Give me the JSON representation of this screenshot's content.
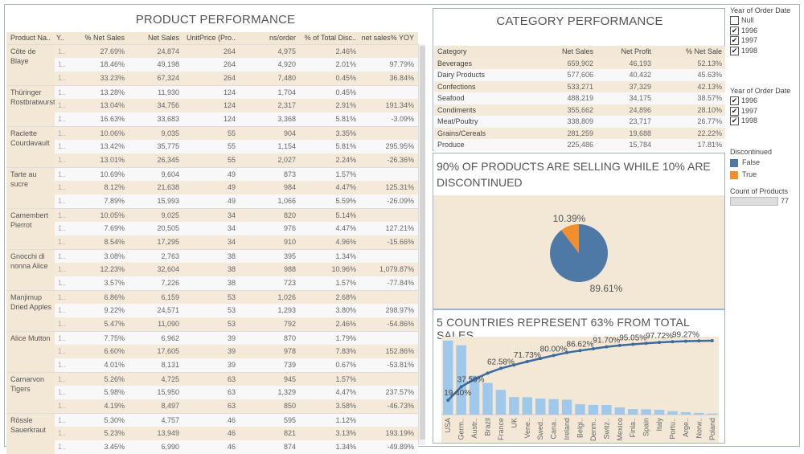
{
  "product_performance": {
    "title": "PRODUCT PERFORMANCE",
    "headers": [
      "Product Na..",
      "Y..",
      "% Net Sales",
      "Net Sales",
      "UnitPrice (Pro..",
      "ns/order",
      "% of Total Disc..",
      "net sales% YOY"
    ],
    "year_cell": "1..",
    "products": [
      {
        "name": "Côte de Blaye",
        "rows": [
          [
            "27.69%",
            "24,874",
            "264",
            "4,975",
            "2.46%",
            ""
          ],
          [
            "18.46%",
            "49,198",
            "264",
            "4,920",
            "2.01%",
            "97.79%"
          ],
          [
            "33.23%",
            "67,324",
            "264",
            "7,480",
            "0.45%",
            "36.84%"
          ]
        ]
      },
      {
        "name": "Thüringer Rostbratwurst",
        "rows": [
          [
            "13.28%",
            "11,930",
            "124",
            "1,704",
            "0.45%",
            ""
          ],
          [
            "13.04%",
            "34,756",
            "124",
            "2,317",
            "2.91%",
            "191.34%"
          ],
          [
            "16.63%",
            "33,683",
            "124",
            "3,368",
            "5.81%",
            "-3.09%"
          ]
        ]
      },
      {
        "name": "Raclette Courdavault",
        "rows": [
          [
            "10.06%",
            "9,035",
            "55",
            "904",
            "3.35%",
            ""
          ],
          [
            "13.42%",
            "35,775",
            "55",
            "1,154",
            "5.81%",
            "295.95%"
          ],
          [
            "13.01%",
            "26,345",
            "55",
            "2,027",
            "2.24%",
            "-26.36%"
          ]
        ]
      },
      {
        "name": "Tarte au sucre",
        "rows": [
          [
            "10.69%",
            "9,604",
            "49",
            "873",
            "1.57%",
            ""
          ],
          [
            "8.12%",
            "21,638",
            "49",
            "984",
            "4.47%",
            "125.31%"
          ],
          [
            "7.89%",
            "15,993",
            "49",
            "1,066",
            "5.59%",
            "-26.09%"
          ]
        ]
      },
      {
        "name": "Camembert Pierrot",
        "rows": [
          [
            "10.05%",
            "9,025",
            "34",
            "820",
            "5.14%",
            ""
          ],
          [
            "7.69%",
            "20,505",
            "34",
            "976",
            "4.47%",
            "127.21%"
          ],
          [
            "8.54%",
            "17,295",
            "34",
            "910",
            "4.96%",
            "-15.66%"
          ]
        ]
      },
      {
        "name": "Gnocchi di nonna Alice",
        "rows": [
          [
            "3.08%",
            "2,763",
            "38",
            "395",
            "1.34%",
            ""
          ],
          [
            "12.23%",
            "32,604",
            "38",
            "988",
            "10.96%",
            "1,079.87%"
          ],
          [
            "3.57%",
            "7,226",
            "38",
            "723",
            "1.57%",
            "-77.84%"
          ]
        ]
      },
      {
        "name": "Manjimup Dried Apples",
        "rows": [
          [
            "6.86%",
            "6,159",
            "53",
            "1,026",
            "2.68%",
            ""
          ],
          [
            "9.22%",
            "24,571",
            "53",
            "1,293",
            "3.80%",
            "298.97%"
          ],
          [
            "5.47%",
            "11,090",
            "53",
            "792",
            "2.46%",
            "-54.86%"
          ]
        ]
      },
      {
        "name": "Alice Mutton",
        "rows": [
          [
            "7.75%",
            "6,962",
            "39",
            "870",
            "1.79%",
            ""
          ],
          [
            "6.60%",
            "17,605",
            "39",
            "978",
            "7.83%",
            "152.86%"
          ],
          [
            "4.01%",
            "8,131",
            "39",
            "739",
            "0.67%",
            "-53.81%"
          ]
        ]
      },
      {
        "name": "Carnarvon Tigers",
        "rows": [
          [
            "5.26%",
            "4,725",
            "63",
            "945",
            "1.57%",
            ""
          ],
          [
            "5.98%",
            "15,950",
            "63",
            "1,329",
            "4.47%",
            "237.57%"
          ],
          [
            "4.19%",
            "8,497",
            "63",
            "850",
            "3.58%",
            "-46.73%"
          ]
        ]
      },
      {
        "name": "Rössle Sauerkraut",
        "rows": [
          [
            "5.30%",
            "4,757",
            "46",
            "595",
            "1.12%",
            ""
          ],
          [
            "5.23%",
            "13,949",
            "46",
            "821",
            "3.13%",
            "193.19%"
          ],
          [
            "3.45%",
            "6,990",
            "46",
            "874",
            "1.34%",
            "-49.89%"
          ]
        ]
      }
    ]
  },
  "category_performance": {
    "title": "CATEGORY PERFORMANCE",
    "headers": [
      "Category",
      "Net Sales",
      "Net Profit",
      "% Net Sale"
    ],
    "rows": [
      [
        "Beverages",
        "659,902",
        "46,193",
        "52.13%"
      ],
      [
        "Dairy Products",
        "577,606",
        "40,432",
        "45.63%"
      ],
      [
        "Confections",
        "533,271",
        "37,329",
        "42.13%"
      ],
      [
        "Seafood",
        "488,219",
        "34,175",
        "38.57%"
      ],
      [
        "Condiments",
        "355,662",
        "24,896",
        "28.10%"
      ],
      [
        "Meat/Poultry",
        "338,809",
        "23,717",
        "26.77%"
      ],
      [
        "Grains/Cereals",
        "281,259",
        "19,688",
        "22.22%"
      ],
      [
        "Produce",
        "225,486",
        "15,784",
        "17.81%"
      ]
    ]
  },
  "discontinued_pie": {
    "title": "90% OF PRODUCTS ARE SELLING WHILE 10% ARE DISCONTINUED",
    "slices": [
      {
        "label": "False",
        "value": 89.61,
        "text": "89.61%",
        "color": "#4e79a7"
      },
      {
        "label": "True",
        "value": 10.39,
        "text": "10.39%",
        "color": "#f28e2b"
      }
    ]
  },
  "chart_data": {
    "type": "bar",
    "title": "5 COUNTRIES REPRESENT 63% FROM TOTAL SALES",
    "categories": [
      "USA",
      "Germ..",
      "Austr..",
      "Brazil",
      "France",
      "UK",
      "Vene..",
      "Swed..",
      "Cana..",
      "Ireland",
      "Belgi..",
      "Denm..",
      "Switz..",
      "Mexico",
      "Finla..",
      "Spain",
      "Italy",
      "Portu..",
      "Arge..",
      "Norw..",
      "Poland"
    ],
    "series": [
      {
        "type": "bar",
        "values": [
          19.4,
          18.19,
          10.2,
          8.3,
          6.49,
          4.6,
          4.55,
          4.2,
          4.07,
          3.9,
          2.72,
          2.55,
          2.53,
          1.9,
          1.45,
          1.4,
          1.27,
          0.9,
          0.65,
          0.45,
          0.28
        ],
        "color": "#9fc8ea"
      },
      {
        "type": "line",
        "values": [
          19.4,
          37.59,
          47.79,
          56.09,
          62.58,
          67.18,
          71.73,
          75.93,
          80.0,
          83.9,
          86.62,
          89.17,
          91.7,
          93.6,
          95.05,
          96.45,
          97.72,
          98.62,
          99.27,
          99.72,
          100.0
        ],
        "color": "#3d6a9c"
      }
    ],
    "point_labels": [
      "19.40%",
      "37.59%",
      "",
      "",
      "62.58%",
      "",
      "71.73%",
      "",
      "80.00%",
      "",
      "86.62%",
      "",
      "91.70%",
      "",
      "95.05%",
      "",
      "97.72%",
      "",
      "99.27%",
      "",
      ""
    ],
    "ylim_bar": [
      0,
      20
    ],
    "ylim_line": [
      0,
      100
    ],
    "grid": false
  },
  "filters": {
    "year_filter_1": {
      "title": "Year of Order Date",
      "options": [
        {
          "label": "Null",
          "checked": false
        },
        {
          "label": "1996",
          "checked": true
        },
        {
          "label": "1997",
          "checked": true
        },
        {
          "label": "1998",
          "checked": true
        }
      ]
    },
    "year_filter_2": {
      "title": "Year of Order Date",
      "options": [
        {
          "label": "1996",
          "checked": true
        },
        {
          "label": "1997",
          "checked": true
        },
        {
          "label": "1998",
          "checked": true
        }
      ]
    },
    "legend": {
      "title": "Discontinued",
      "items": [
        {
          "label": "False",
          "color": "#4e79a7"
        },
        {
          "label": "True",
          "color": "#f28e2b"
        }
      ]
    },
    "count": {
      "title": "Count of Products",
      "value": "77"
    }
  }
}
